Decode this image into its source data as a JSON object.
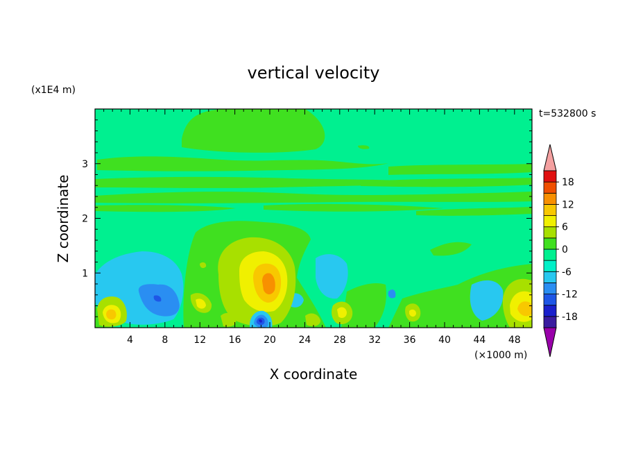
{
  "chart_data": {
    "type": "heatmap",
    "title": "vertical velocity",
    "xlabel": "X coordinate",
    "ylabel": "Z coordinate",
    "x_unit": "(×1000 m)",
    "y_unit": "(x1E4 m)",
    "time_label": "t=532800 s",
    "xlim": [
      0,
      50
    ],
    "ylim": [
      0,
      4
    ],
    "x_ticks": [
      4,
      8,
      12,
      16,
      20,
      24,
      28,
      32,
      36,
      40,
      44,
      48
    ],
    "y_ticks": [
      1,
      2,
      3
    ],
    "colorbar": {
      "levels": [
        -21,
        -18,
        -15,
        -12,
        -9,
        -6,
        -3,
        0,
        3,
        6,
        9,
        12,
        15,
        18,
        21
      ],
      "tick_values": [
        18,
        12,
        6,
        0,
        -6,
        -12,
        -18
      ],
      "colors": [
        "#9900aa",
        "#3a1ca0",
        "#1a20cc",
        "#1e56e6",
        "#2a8ef2",
        "#28c8f0",
        "#00f0c8",
        "#00f090",
        "#40e020",
        "#a8e000",
        "#f0f000",
        "#f8c800",
        "#f89000",
        "#f05000",
        "#e01010",
        "#f4a0a0"
      ],
      "extend": "both"
    },
    "features": [
      {
        "x": 20.0,
        "z": 0.8,
        "w": 10,
        "kind": "updraft"
      },
      {
        "x": 2.0,
        "z": 0.25,
        "w": 8,
        "kind": "updraft"
      },
      {
        "x": 48.3,
        "z": 0.4,
        "w": 8,
        "kind": "updraft"
      },
      {
        "x": 7.5,
        "z": 0.55,
        "w": -9,
        "kind": "downdraft"
      },
      {
        "x": 18.8,
        "z": 0.15,
        "w": -14,
        "kind": "downdraft"
      }
    ]
  }
}
